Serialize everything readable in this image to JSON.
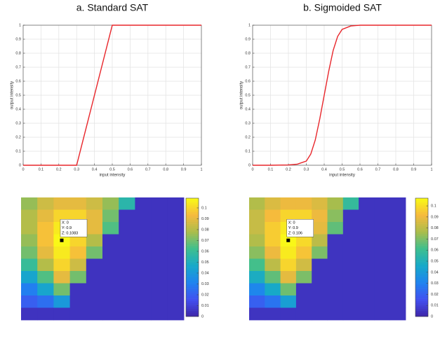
{
  "chart_data": [
    {
      "type": "line",
      "title": "a. Standard SAT",
      "xlabel": "input intensity",
      "ylabel": "output intensity",
      "x": [
        0,
        0.3,
        0.5,
        1
      ],
      "series": [
        {
          "color": "#e8262b",
          "values": [
            0,
            0,
            1,
            1
          ]
        }
      ],
      "xlim": [
        0,
        1
      ],
      "ylim": [
        0,
        1
      ],
      "xticks": [
        0,
        0.1,
        0.2,
        0.3,
        0.4,
        0.5,
        0.6,
        0.7,
        0.8,
        0.9,
        1
      ],
      "yticks": [
        0,
        0.1,
        0.2,
        0.3,
        0.4,
        0.5,
        0.6,
        0.7,
        0.8,
        0.9,
        1
      ],
      "grid": true
    },
    {
      "type": "line",
      "title": "b. Sigmoided SAT",
      "xlabel": "input intensity",
      "ylabel": "output intensity",
      "x": [
        0,
        0.1,
        0.2,
        0.25,
        0.3,
        0.325,
        0.35,
        0.375,
        0.4,
        0.425,
        0.45,
        0.475,
        0.5,
        0.55,
        0.6,
        0.8,
        1
      ],
      "series": [
        {
          "color": "#e8262b",
          "values": [
            0,
            0,
            0.002,
            0.008,
            0.03,
            0.08,
            0.18,
            0.33,
            0.5,
            0.67,
            0.82,
            0.92,
            0.97,
            0.995,
            1,
            1,
            1
          ]
        }
      ],
      "xlim": [
        0,
        1
      ],
      "ylim": [
        0,
        1
      ],
      "xticks": [
        0,
        0.1,
        0.2,
        0.3,
        0.4,
        0.5,
        0.6,
        0.7,
        0.8,
        0.9,
        1
      ],
      "yticks": [
        0,
        0.1,
        0.2,
        0.3,
        0.4,
        0.5,
        0.6,
        0.7,
        0.8,
        0.9,
        1
      ],
      "grid": true
    },
    {
      "type": "heatmap",
      "datatip": [
        "X: 0",
        "Y: 0.9",
        "Z: 0.1083"
      ],
      "colormap": [
        "#3e26a8",
        "#4250f0",
        "#1f83f0",
        "#17a9c9",
        "#3dbf8f",
        "#aabd4b",
        "#f6ba3d",
        "#f9fb15"
      ],
      "ylim": [
        0,
        0.109
      ],
      "yticks": [
        0,
        0.01,
        0.02,
        0.03,
        0.04,
        0.05,
        0.06,
        0.07,
        0.08,
        0.09,
        0.1
      ],
      "values": [
        [
          0.075,
          0.085,
          0.09,
          0.09,
          0.085,
          0.075,
          0.055,
          0.005,
          0.005,
          0.005
        ],
        [
          0.08,
          0.09,
          0.1,
          0.1,
          0.09,
          0.07,
          0.005,
          0.005,
          0.005,
          0.005
        ],
        [
          0.08,
          0.095,
          0.105,
          0.1,
          0.09,
          0.065,
          0.005,
          0.005,
          0.005,
          0.005
        ],
        [
          0.075,
          0.095,
          0.1083,
          0.1,
          0.08,
          0.005,
          0.005,
          0.005,
          0.005,
          0.005
        ],
        [
          0.07,
          0.09,
          0.105,
          0.095,
          0.07,
          0.005,
          0.005,
          0.005,
          0.005,
          0.005
        ],
        [
          0.06,
          0.08,
          0.1,
          0.085,
          0.005,
          0.005,
          0.005,
          0.005,
          0.005,
          0.005
        ],
        [
          0.045,
          0.065,
          0.09,
          0.07,
          0.005,
          0.005,
          0.005,
          0.005,
          0.005,
          0.005
        ],
        [
          0.03,
          0.045,
          0.07,
          0.005,
          0.005,
          0.005,
          0.005,
          0.005,
          0.005,
          0.005
        ],
        [
          0.02,
          0.025,
          0.04,
          0.005,
          0.005,
          0.005,
          0.005,
          0.005,
          0.005,
          0.005
        ],
        [
          0.005,
          0.005,
          0.005,
          0.005,
          0.005,
          0.005,
          0.005,
          0.005,
          0.005,
          0.005
        ]
      ]
    },
    {
      "type": "heatmap",
      "datatip": [
        "X: 0",
        "Y: 0.9",
        "Z: 0.106"
      ],
      "colormap": [
        "#3e26a8",
        "#4250f0",
        "#1f83f0",
        "#17a9c9",
        "#3dbf8f",
        "#aabd4b",
        "#f6ba3d",
        "#f9fb15"
      ],
      "ylim": [
        0,
        0.107
      ],
      "yticks": [
        0,
        0.01,
        0.02,
        0.03,
        0.04,
        0.05,
        0.06,
        0.07,
        0.08,
        0.09,
        0.1
      ],
      "values": [
        [
          0.078,
          0.086,
          0.09,
          0.09,
          0.086,
          0.076,
          0.058,
          0.005,
          0.005,
          0.005
        ],
        [
          0.082,
          0.092,
          0.098,
          0.098,
          0.09,
          0.072,
          0.005,
          0.005,
          0.005,
          0.005
        ],
        [
          0.082,
          0.096,
          0.103,
          0.1,
          0.088,
          0.066,
          0.005,
          0.005,
          0.005,
          0.005
        ],
        [
          0.078,
          0.096,
          0.106,
          0.099,
          0.08,
          0.005,
          0.005,
          0.005,
          0.005,
          0.005
        ],
        [
          0.072,
          0.09,
          0.103,
          0.094,
          0.07,
          0.005,
          0.005,
          0.005,
          0.005,
          0.005
        ],
        [
          0.062,
          0.08,
          0.098,
          0.084,
          0.005,
          0.005,
          0.005,
          0.005,
          0.005,
          0.005
        ],
        [
          0.048,
          0.066,
          0.088,
          0.07,
          0.005,
          0.005,
          0.005,
          0.005,
          0.005,
          0.005
        ],
        [
          0.032,
          0.046,
          0.068,
          0.005,
          0.005,
          0.005,
          0.005,
          0.005,
          0.005,
          0.005
        ],
        [
          0.02,
          0.026,
          0.042,
          0.005,
          0.005,
          0.005,
          0.005,
          0.005,
          0.005,
          0.005
        ],
        [
          0.005,
          0.005,
          0.005,
          0.005,
          0.005,
          0.005,
          0.005,
          0.005,
          0.005,
          0.005
        ]
      ]
    }
  ]
}
